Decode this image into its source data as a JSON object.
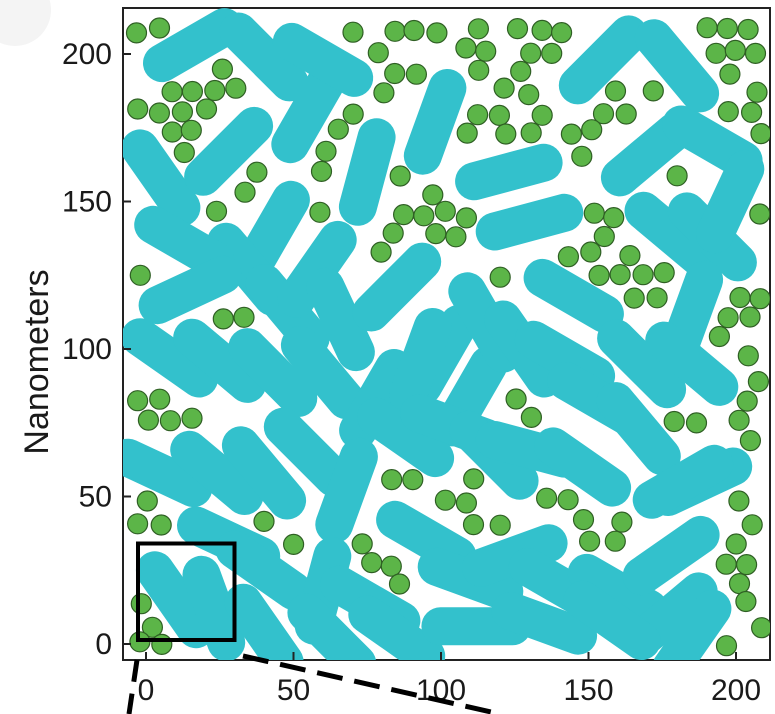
{
  "figure": {
    "y_axis_label": "Nanometers",
    "x_ticks": [
      "0",
      "50",
      "100",
      "150",
      "200"
    ],
    "y_ticks": [
      "0",
      "50",
      "100",
      "150",
      "200"
    ],
    "colors": {
      "sphere": "#5cb548",
      "sphere_outline": "#2f5f24",
      "rod": "#33c1cc",
      "frame": "#222222",
      "inset_box": "#000000"
    },
    "inset": {
      "x": [
        0,
        30
      ],
      "y": [
        0,
        30
      ]
    },
    "rods": [
      [
        16,
        203,
        30
      ],
      [
        40,
        199,
        -45
      ],
      [
        55,
        180,
        60
      ],
      [
        60,
        198,
        -30
      ],
      [
        98,
        177,
        70
      ],
      [
        75,
        160,
        75
      ],
      [
        123,
        160,
        15
      ],
      [
        130,
        143,
        15
      ],
      [
        145,
        118,
        -30
      ],
      [
        155,
        198,
        45
      ],
      [
        170,
        166,
        40
      ],
      [
        178,
        139,
        -40
      ],
      [
        192,
        138,
        -45
      ],
      [
        192,
        170,
        -30
      ],
      [
        185,
        112,
        70
      ],
      [
        198,
        150,
        65
      ],
      [
        180,
        196,
        -50
      ],
      [
        5,
        158,
        -55
      ],
      [
        28,
        167,
        45
      ],
      [
        43,
        140,
        60
      ],
      [
        35,
        127,
        -50
      ],
      [
        13,
        136,
        -30
      ],
      [
        15,
        120,
        25
      ],
      [
        48,
        113,
        -50
      ],
      [
        58,
        127,
        55
      ],
      [
        66,
        110,
        -65
      ],
      [
        85,
        121,
        45
      ],
      [
        100,
        98,
        60
      ],
      [
        8,
        97,
        -35
      ],
      [
        25,
        96,
        -40
      ],
      [
        43,
        92,
        -45
      ],
      [
        60,
        92,
        -50
      ],
      [
        78,
        83,
        60
      ],
      [
        93,
        96,
        70
      ],
      [
        110,
        84,
        60
      ],
      [
        115,
        109,
        -60
      ],
      [
        128,
        100,
        -55
      ],
      [
        142,
        97,
        -30
      ],
      [
        153,
        83,
        -30
      ],
      [
        168,
        95,
        -45
      ],
      [
        185,
        95,
        -40
      ],
      [
        5,
        58,
        -25
      ],
      [
        24,
        58,
        -40
      ],
      [
        40,
        58,
        -50
      ],
      [
        55,
        65,
        -45
      ],
      [
        68,
        52,
        70
      ],
      [
        88,
        70,
        -35
      ],
      [
        104,
        74,
        -20
      ],
      [
        118,
        64,
        -45
      ],
      [
        130,
        66,
        -15
      ],
      [
        148,
        60,
        -35
      ],
      [
        167,
        73,
        -50
      ],
      [
        188,
        55,
        25
      ],
      [
        28,
        35,
        -25
      ],
      [
        40,
        25,
        -35
      ],
      [
        60,
        18,
        75
      ],
      [
        76,
        14,
        -30
      ],
      [
        95,
        36,
        -30
      ],
      [
        110,
        22,
        -20
      ],
      [
        125,
        30,
        20
      ],
      [
        140,
        20,
        -30
      ],
      [
        160,
        18,
        -30
      ],
      [
        178,
        30,
        35
      ],
      [
        178,
        10,
        40
      ],
      [
        182,
        55,
        30
      ],
      [
        10,
        15,
        -55
      ],
      [
        23,
        12,
        -70
      ],
      [
        40,
        4,
        -55
      ],
      [
        63,
        2,
        -45
      ],
      [
        85,
        3,
        -35
      ],
      [
        112,
        6,
        0
      ],
      [
        135,
        7,
        -20
      ],
      [
        158,
        8,
        -35
      ],
      [
        185,
        2,
        55
      ]
    ]
  }
}
